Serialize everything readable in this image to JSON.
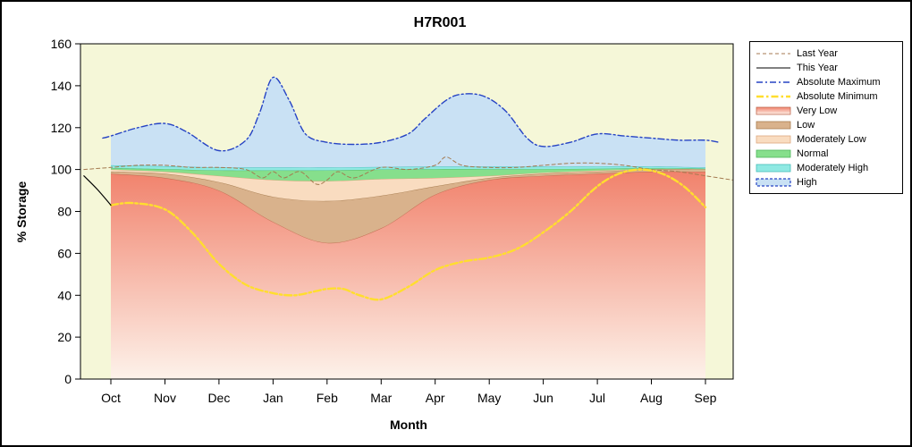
{
  "chart_data": {
    "type": "area",
    "title": "H7R001",
    "xlabel": "Month",
    "ylabel": "% Storage",
    "ylim": [
      0,
      160
    ],
    "xlim": [
      -0.5,
      11.5
    ],
    "yticks": [
      0,
      20,
      40,
      60,
      80,
      100,
      120,
      140,
      160
    ],
    "months": [
      "Oct",
      "Nov",
      "Dec",
      "Jan",
      "Feb",
      "Mar",
      "Apr",
      "May",
      "Jun",
      "Jul",
      "Aug",
      "Sep"
    ],
    "plot_bg": "#f5f7d8",
    "bands": [
      {
        "name": "Very Low",
        "gradient": true,
        "fill_top": "#f1826c",
        "fill_bottom": "#fdf2ea",
        "stroke": "#c06a50",
        "top": [
          98,
          96,
          90,
          75,
          65,
          72,
          88,
          95,
          97,
          98,
          99,
          99
        ]
      },
      {
        "name": "Low",
        "fill": "#d9b28c",
        "stroke": "#a87e52",
        "top": [
          99,
          98,
          94,
          87,
          85,
          87.5,
          92,
          96,
          98,
          99,
          100,
          100
        ]
      },
      {
        "name": "Moderately Low",
        "fill": "#f9dcc0",
        "stroke": "#dca87e",
        "top": [
          100,
          99,
          97,
          95,
          94.5,
          95.5,
          96,
          97,
          98.5,
          99.5,
          100.2,
          100.2
        ]
      },
      {
        "name": "Normal",
        "fill": "#86df8c",
        "stroke": "#4eb65c",
        "top": [
          100.6,
          100.2,
          99.6,
          99.6,
          99.6,
          100,
          100.2,
          100.2,
          100.2,
          100.4,
          100.6,
          100.4
        ]
      },
      {
        "name": "Moderately High",
        "fill": "#8fe9e3",
        "stroke": "#46bdb9",
        "top": [
          102,
          101.6,
          101,
          101,
          101,
          101.2,
          101.4,
          101.4,
          101.4,
          101.5,
          101.5,
          101
        ]
      },
      {
        "name": "High",
        "fill": "#c9e1f4",
        "stroke": "none",
        "top_series": "absolute_maximum"
      }
    ],
    "series": {
      "last_year": {
        "label": "Last Year",
        "color": "#a47a50",
        "width": 1,
        "dash": "4 3",
        "x": [
          -0.5,
          0,
          0.5,
          1,
          1.5,
          2,
          2.5,
          2.8,
          3,
          3.2,
          3.5,
          3.8,
          4,
          4.2,
          4.5,
          5,
          5.5,
          6,
          6.2,
          6.5,
          7,
          7.5,
          8,
          8.5,
          9,
          9.5,
          10,
          10.5,
          11,
          11.5
        ],
        "y": [
          100,
          101,
          102,
          102,
          101,
          101,
          100,
          96,
          99,
          96,
          99,
          93,
          95,
          99,
          96,
          101,
          100,
          102,
          106,
          102,
          101,
          101,
          102,
          103,
          103,
          102,
          100,
          99,
          97,
          95
        ]
      },
      "this_year": {
        "label": "This Year",
        "color": "#000000",
        "width": 1.2,
        "dash": "",
        "x": [
          -0.5,
          -0.25,
          0
        ],
        "y": [
          97,
          90.5,
          83
        ]
      },
      "absolute_maximum": {
        "label": "Absolute Maximum",
        "color": "#2643c4",
        "width": 1.4,
        "dash": "7 3 2 3",
        "x": [
          -0.15,
          0,
          0.5,
          1,
          1.4,
          2,
          2.5,
          2.75,
          3,
          3.3,
          3.6,
          4,
          4.5,
          5,
          5.5,
          5.8,
          6.2,
          6.5,
          6.9,
          7.3,
          7.7,
          8,
          8.5,
          9,
          9.5,
          10,
          10.5,
          11,
          11.25
        ],
        "y": [
          115,
          116,
          120,
          122,
          118,
          109,
          114,
          127,
          144,
          133,
          117,
          113,
          112,
          113,
          117,
          124,
          133,
          136,
          135,
          128,
          115,
          111,
          113,
          117,
          116,
          115,
          114,
          114,
          113
        ]
      },
      "absolute_minimum": {
        "label": "Absolute Minimum",
        "color": "#ffde2e",
        "width": 2.4,
        "dash": "8 3 2.5 3",
        "x": [
          0,
          0.4,
          1,
          1.5,
          2,
          2.5,
          3,
          3.4,
          3.8,
          4,
          4.3,
          4.6,
          5,
          5.5,
          6,
          6.5,
          7,
          7.5,
          8,
          8.5,
          9,
          9.4,
          9.8,
          10.2,
          10.6,
          11
        ],
        "y": [
          83,
          84,
          81,
          70,
          55,
          45,
          41,
          40,
          42,
          43,
          43,
          40,
          38,
          44,
          52,
          56,
          58,
          62,
          70,
          80,
          92,
          98,
          100,
          98,
          92,
          82
        ]
      }
    },
    "line_order": [
      "last_year",
      "absolute_minimum",
      "absolute_maximum",
      "this_year"
    ],
    "legend": {
      "position": "right",
      "items": [
        {
          "label": "Last Year",
          "type": "line",
          "color": "#a47a50",
          "dash": "4 3",
          "width": 1
        },
        {
          "label": "This Year",
          "type": "line",
          "color": "#000000",
          "dash": "",
          "width": 1
        },
        {
          "label": "Absolute Maximum",
          "type": "line",
          "color": "#2643c4",
          "dash": "7 3 2 3",
          "width": 1.4
        },
        {
          "label": "Absolute Minimum",
          "type": "line",
          "color": "#ffde2e",
          "dash": "8 3 2.5 3",
          "width": 2.4
        },
        {
          "label": "Very Low",
          "type": "fill",
          "color": "#f1826c",
          "border": "#c06a50",
          "gradient": true
        },
        {
          "label": "Low",
          "type": "fill",
          "color": "#d9b28c",
          "border": "#a87e52"
        },
        {
          "label": "Moderately Low",
          "type": "fill",
          "color": "#f9dcc0",
          "border": "#dca87e"
        },
        {
          "label": "Normal",
          "type": "fill",
          "color": "#86df8c",
          "border": "#4eb65c"
        },
        {
          "label": "Moderately High",
          "type": "fill",
          "color": "#8fe9e3",
          "border": "#46bdb9"
        },
        {
          "label": "High",
          "type": "fill-line",
          "color": "#c9e1f4",
          "border": "#2643c4",
          "dash": "3 2",
          "width": 1.2
        }
      ]
    }
  }
}
